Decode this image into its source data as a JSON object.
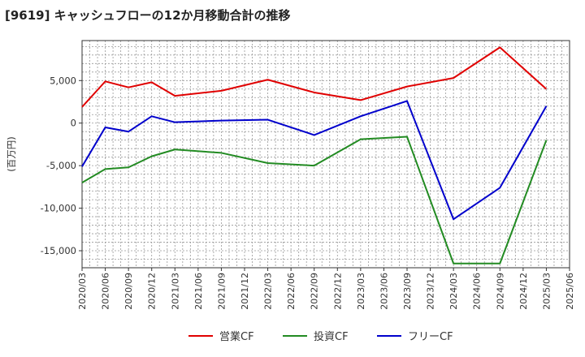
{
  "chart_data": {
    "type": "line",
    "title": "[9619]  キャッシュフローの12か月移動合計の推移",
    "ylabel": "(百万円)",
    "xlabel": "",
    "x_ticks": [
      "2020/03",
      "2020/06",
      "2020/09",
      "2020/12",
      "2021/03",
      "2021/06",
      "2021/09",
      "2021/12",
      "2022/03",
      "2022/06",
      "2022/09",
      "2022/12",
      "2023/03",
      "2023/06",
      "2023/09",
      "2023/12",
      "2024/03",
      "2024/06",
      "2024/09",
      "2024/12",
      "2025/03",
      "2025/06"
    ],
    "y_ticks": [
      5000,
      0,
      -5000,
      -10000,
      -15000
    ],
    "y_tick_labels": [
      "5,000",
      "0",
      "-5,000",
      "-10,000",
      "-15,000"
    ],
    "ylim": [
      -17000,
      9700
    ],
    "grid": true,
    "legend_position": "bottom",
    "series": [
      {
        "name": "営業CF",
        "color": "#e00000",
        "points": [
          [
            "2020/03",
            1900
          ],
          [
            "2020/06",
            4900
          ],
          [
            "2020/09",
            4200
          ],
          [
            "2020/12",
            4800
          ],
          [
            "2021/03",
            3200
          ],
          [
            "2021/09",
            3800
          ],
          [
            "2022/03",
            5100
          ],
          [
            "2022/09",
            3600
          ],
          [
            "2023/03",
            2700
          ],
          [
            "2023/09",
            4300
          ],
          [
            "2024/03",
            5300
          ],
          [
            "2024/09",
            8900
          ],
          [
            "2025/03",
            4000
          ]
        ]
      },
      {
        "name": "投資CF",
        "color": "#228b22",
        "points": [
          [
            "2020/03",
            -7000
          ],
          [
            "2020/06",
            -5400
          ],
          [
            "2020/09",
            -5200
          ],
          [
            "2020/12",
            -3900
          ],
          [
            "2021/03",
            -3100
          ],
          [
            "2021/09",
            -3500
          ],
          [
            "2022/03",
            -4700
          ],
          [
            "2022/09",
            -5000
          ],
          [
            "2023/03",
            -1900
          ],
          [
            "2023/09",
            -1600
          ],
          [
            "2024/03",
            -16500
          ],
          [
            "2024/09",
            -16500
          ],
          [
            "2025/03",
            -2000
          ]
        ]
      },
      {
        "name": "フリーCF",
        "color": "#0000cc",
        "points": [
          [
            "2020/03",
            -5100
          ],
          [
            "2020/06",
            -500
          ],
          [
            "2020/09",
            -1000
          ],
          [
            "2020/12",
            800
          ],
          [
            "2021/03",
            100
          ],
          [
            "2021/09",
            300
          ],
          [
            "2022/03",
            400
          ],
          [
            "2022/09",
            -1400
          ],
          [
            "2023/03",
            800
          ],
          [
            "2023/09",
            2600
          ],
          [
            "2024/03",
            -11300
          ],
          [
            "2024/09",
            -7600
          ],
          [
            "2025/03",
            2000
          ]
        ]
      }
    ]
  }
}
